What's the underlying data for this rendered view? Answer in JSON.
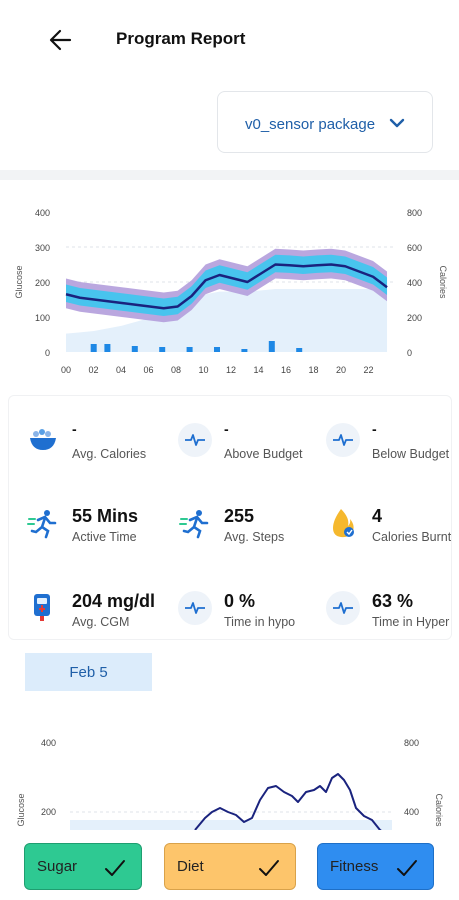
{
  "header": {
    "title": "Program Report",
    "back_icon": "arrow-left-icon"
  },
  "package_select": {
    "selected": "v0_sensor package",
    "icon": "chevron-down-icon"
  },
  "glucose_chart": {
    "chart_data": {
      "type": "area",
      "ylabel": "Glucose",
      "y2label": "Calories",
      "ylim": [
        0,
        400
      ],
      "y2lim": [
        0,
        800
      ],
      "yticks": [
        "400",
        "300",
        "200",
        "100",
        "0"
      ],
      "y2ticks": [
        "800",
        "600",
        "400",
        "200",
        "0"
      ],
      "xticks": [
        "00",
        "02",
        "04",
        "06",
        "08",
        "10",
        "12",
        "14",
        "16",
        "18",
        "20",
        "22"
      ],
      "x": [
        0,
        1,
        2,
        3,
        4,
        5,
        6,
        7,
        8,
        9,
        10,
        11,
        12,
        13,
        14,
        15,
        16,
        17,
        18,
        19,
        20,
        21,
        22,
        23
      ],
      "series": [
        {
          "values": [
            165,
            155,
            150,
            145,
            140,
            135,
            130,
            125,
            130,
            160,
            205,
            220,
            210,
            200,
            225,
            250,
            248,
            245,
            248,
            250,
            245,
            230,
            215,
            185
          ]
        }
      ],
      "colors": {
        "line": "#1a237e",
        "inner_band": "#3cc8ef",
        "outer_band": "#b39ddb",
        "base_area": "#e4f0fb",
        "bars": "#1e88e5"
      }
    }
  },
  "metrics": [
    {
      "value": "-",
      "label": "Avg. Calories",
      "icon": "food-bowl-icon"
    },
    {
      "value": "-",
      "label": "Above Budget",
      "icon": "pulse-icon"
    },
    {
      "value": "-",
      "label": "Below Budget",
      "icon": "pulse-icon"
    },
    {
      "value": "55 Mins",
      "label": "Active Time",
      "icon": "runner-icon"
    },
    {
      "value": "255",
      "label": "Avg. Steps",
      "icon": "runner-icon"
    },
    {
      "value": "4",
      "label": "Calories Burnt",
      "icon": "flame-icon"
    },
    {
      "value": "204 mg/dl",
      "label": "Avg. CGM",
      "icon": "glucose-meter-icon"
    },
    {
      "value": "0 %",
      "label": "Time in hypo",
      "icon": "pulse-icon"
    },
    {
      "value": "63 %",
      "label": "Time in Hyper",
      "icon": "pulse-icon"
    }
  ],
  "date_chip": {
    "label": "Feb 5"
  },
  "daily_chart": {
    "chart_data": {
      "type": "line",
      "ylabel": "Glucose",
      "y2label": "Calories",
      "yticks": [
        "400",
        "200"
      ],
      "y2ticks": [
        "800",
        "400"
      ],
      "ylim": [
        0,
        400
      ],
      "colors": {
        "line": "#1a237e"
      }
    }
  },
  "tabs": [
    {
      "label": "Sugar",
      "color": "#2ec992",
      "border": "#1f9e70"
    },
    {
      "label": "Diet",
      "color": "#fdc56b",
      "border": "#d9a24a"
    },
    {
      "label": "Fitness",
      "color": "#2f8df0",
      "border": "#1e6fc7"
    }
  ]
}
